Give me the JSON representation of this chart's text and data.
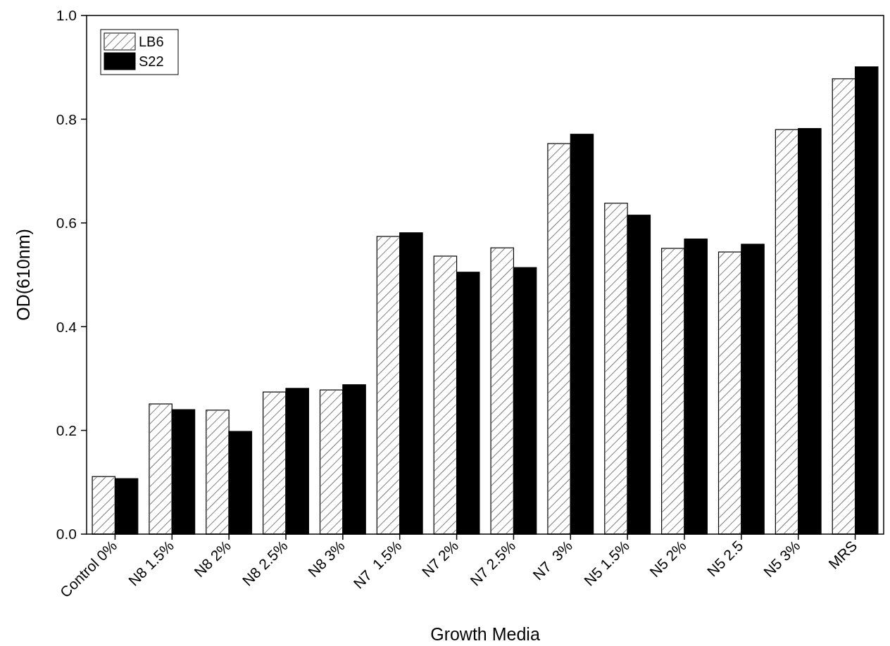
{
  "chart_data": {
    "type": "bar",
    "xlabel": "Growth Media",
    "ylabel": "OD(610nm)",
    "categories": [
      "Control 0%",
      "N8 1.5%",
      "N8 2%",
      "N8 2.5%",
      "N8 3%",
      "N7  1.5%",
      "N7 2%",
      "N7 2.5%",
      "N7  3%",
      "N5 1.5%",
      "N5 2%",
      "N5 2.5",
      "N5 3%",
      "MRS"
    ],
    "series": [
      {
        "name": "LB6",
        "color": "#ffffff",
        "values": [
          0.111,
          0.251,
          0.239,
          0.274,
          0.278,
          0.574,
          0.536,
          0.552,
          0.753,
          0.638,
          0.551,
          0.544,
          0.78,
          0.878
        ]
      },
      {
        "name": "S22",
        "color": "#000000",
        "values": [
          0.107,
          0.24,
          0.198,
          0.281,
          0.288,
          0.581,
          0.505,
          0.514,
          0.771,
          0.615,
          0.569,
          0.559,
          0.782,
          0.901
        ]
      }
    ],
    "ylim": [
      0,
      1.0
    ],
    "yticks": [
      {
        "value": 0,
        "label": "0.0"
      },
      0.2,
      0.4,
      0.6,
      0.8,
      {
        "value": 1,
        "label": "1.0"
      }
    ],
    "legend": "top left",
    "grid": false
  }
}
